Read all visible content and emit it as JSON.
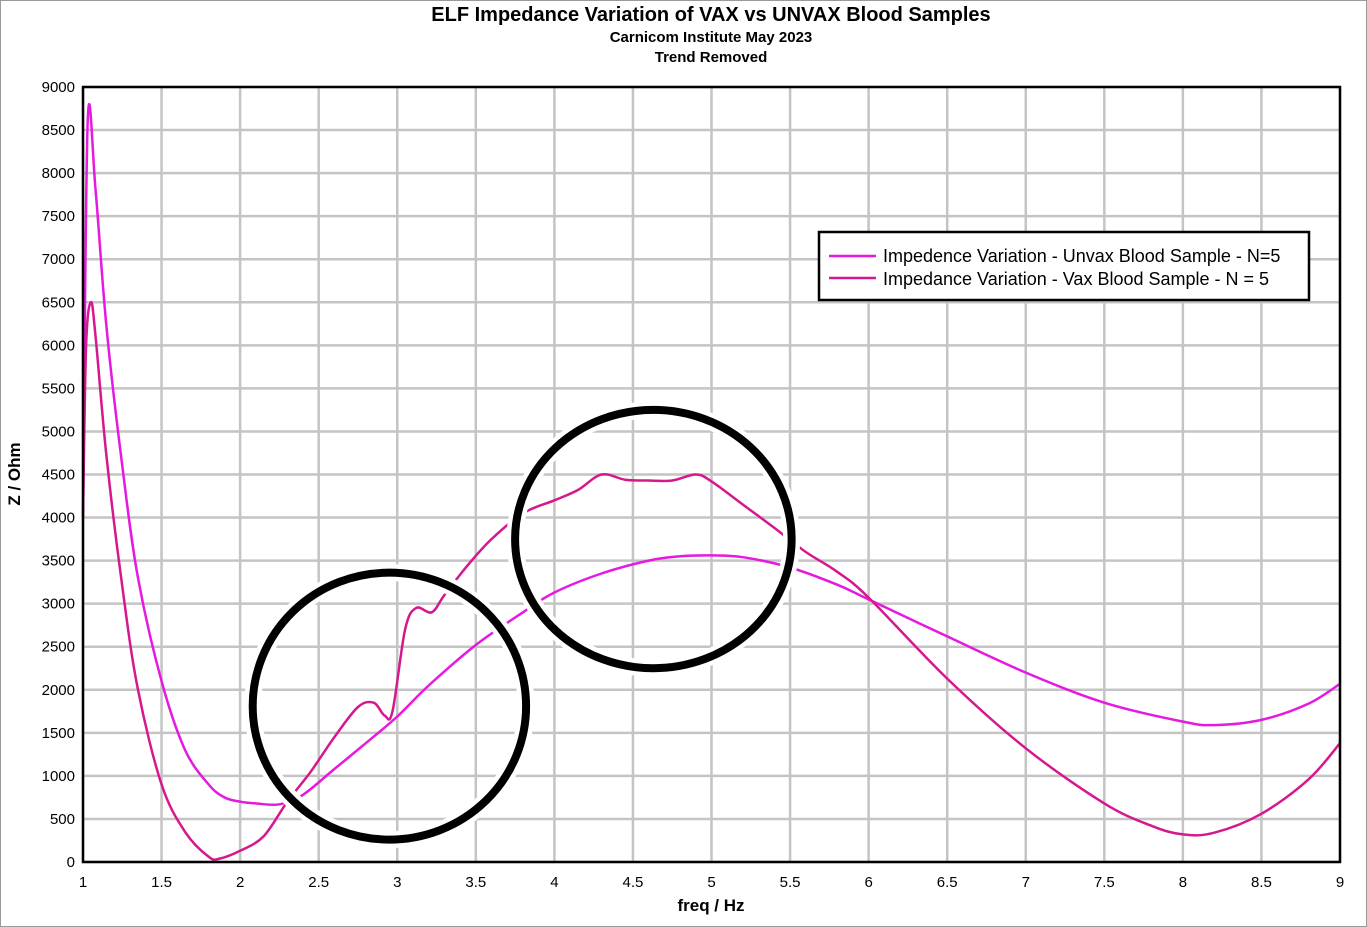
{
  "chart_data": {
    "type": "line",
    "title": "ELF Impedance Variation of VAX vs UNVAX Blood Samples",
    "subtitle_lines": [
      "Carnicom Institute May 2023",
      "Trend Removed"
    ],
    "xlabel": "freq / Hz",
    "ylabel": "Z / Ohm",
    "xlim": [
      1,
      9
    ],
    "ylim": [
      0,
      9000
    ],
    "x_ticks": [
      "1",
      "1.5",
      "2",
      "2.5",
      "3",
      "3.5",
      "4",
      "4.5",
      "5",
      "5.5",
      "6",
      "6.5",
      "7",
      "7.5",
      "8",
      "8.5",
      "9"
    ],
    "y_ticks": [
      "0",
      "500",
      "1000",
      "1500",
      "2000",
      "2500",
      "3000",
      "3500",
      "4000",
      "4500",
      "5000",
      "5500",
      "6000",
      "6500",
      "7000",
      "7500",
      "8000",
      "8500",
      "9000"
    ],
    "grid": true,
    "legend_position": "top-right",
    "series": [
      {
        "name": "Impedence Variation - Unvax Blood Sample - N=5",
        "color": "#e619e0",
        "x": [
          1.0,
          1.03,
          1.08,
          1.15,
          1.25,
          1.35,
          1.5,
          1.65,
          1.8,
          1.9,
          2.0,
          2.1,
          2.25,
          2.4,
          2.6,
          2.8,
          3.0,
          3.2,
          3.5,
          3.8,
          4.0,
          4.3,
          4.6,
          4.8,
          5.0,
          5.2,
          5.5,
          5.8,
          6.0,
          6.5,
          7.0,
          7.5,
          8.0,
          8.2,
          8.5,
          8.8,
          9.0
        ],
        "y": [
          4000,
          8600,
          7800,
          6200,
          4600,
          3300,
          2100,
          1300,
          900,
          750,
          700,
          680,
          670,
          780,
          1080,
          1380,
          1690,
          2050,
          2520,
          2900,
          3130,
          3350,
          3500,
          3550,
          3560,
          3540,
          3420,
          3220,
          3050,
          2620,
          2200,
          1850,
          1630,
          1590,
          1650,
          1840,
          2070
        ]
      },
      {
        "name": "Impedance Variation - Vax Blood Sample - N = 5",
        "color": "#d6188f",
        "x": [
          1.0,
          1.02,
          1.05,
          1.08,
          1.15,
          1.25,
          1.35,
          1.5,
          1.65,
          1.8,
          1.87,
          2.0,
          2.15,
          2.3,
          2.45,
          2.6,
          2.75,
          2.85,
          2.92,
          2.97,
          3.05,
          3.12,
          3.22,
          3.3,
          3.45,
          3.6,
          3.8,
          4.0,
          4.15,
          4.3,
          4.45,
          4.6,
          4.75,
          4.9,
          5.0,
          5.2,
          5.4,
          5.6,
          5.8,
          6.0,
          6.5,
          7.0,
          7.5,
          7.8,
          8.0,
          8.2,
          8.5,
          8.8,
          9.0
        ],
        "y": [
          4000,
          6000,
          6500,
          6100,
          4700,
          3200,
          2000,
          900,
          350,
          60,
          40,
          130,
          300,
          700,
          1050,
          1450,
          1800,
          1850,
          1700,
          1750,
          2700,
          2950,
          2900,
          3100,
          3450,
          3750,
          4050,
          4200,
          4320,
          4500,
          4440,
          4430,
          4430,
          4500,
          4420,
          4150,
          3880,
          3600,
          3370,
          3070,
          2130,
          1320,
          680,
          420,
          320,
          340,
          560,
          960,
          1380
        ]
      }
    ]
  },
  "annotations": [
    {
      "kind": "circle",
      "center_x": 2.95,
      "center_y": 1810,
      "radius_x": 0.87,
      "radius_y": 1550
    },
    {
      "kind": "circle",
      "center_x": 4.63,
      "center_y": 3750,
      "radius_x": 0.88,
      "radius_y": 1500
    }
  ]
}
